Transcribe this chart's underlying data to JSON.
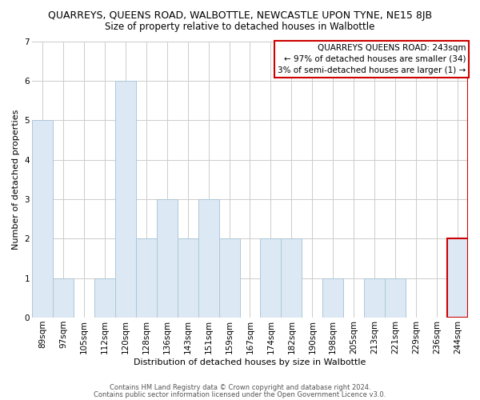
{
  "title": "QUARREYS, QUEENS ROAD, WALBOTTLE, NEWCASTLE UPON TYNE, NE15 8JB",
  "subtitle": "Size of property relative to detached houses in Walbottle",
  "xlabel": "Distribution of detached houses by size in Walbottle",
  "ylabel": "Number of detached properties",
  "bar_labels": [
    "89sqm",
    "97sqm",
    "105sqm",
    "112sqm",
    "120sqm",
    "128sqm",
    "136sqm",
    "143sqm",
    "151sqm",
    "159sqm",
    "167sqm",
    "174sqm",
    "182sqm",
    "190sqm",
    "198sqm",
    "205sqm",
    "213sqm",
    "221sqm",
    "229sqm",
    "236sqm",
    "244sqm"
  ],
  "bar_values": [
    5,
    1,
    0,
    1,
    6,
    2,
    3,
    2,
    3,
    2,
    0,
    2,
    2,
    0,
    1,
    0,
    1,
    1,
    0,
    0,
    2
  ],
  "bar_color": "#dce9f5",
  "bar_edge_color": "#aec6d8",
  "ylim": [
    0,
    7
  ],
  "yticks": [
    0,
    1,
    2,
    3,
    4,
    5,
    6,
    7
  ],
  "legend_title": "QUARREYS QUEENS ROAD: 243sqm",
  "legend_line1": "← 97% of detached houses are smaller (34)",
  "legend_line2": "3% of semi-detached houses are larger (1) →",
  "legend_box_color": "#ffffff",
  "legend_box_edge_color": "#cc0000",
  "highlight_bar_index": 20,
  "highlight_bar_edge_color": "#cc0000",
  "footer1": "Contains HM Land Registry data © Crown copyright and database right 2024.",
  "footer2": "Contains public sector information licensed under the Open Government Licence v3.0.",
  "bg_color": "#ffffff",
  "grid_color": "#cccccc",
  "title_fontsize": 9,
  "subtitle_fontsize": 8.5,
  "axis_label_fontsize": 8,
  "tick_fontsize": 7.5,
  "legend_fontsize": 7.5,
  "footer_fontsize": 6
}
